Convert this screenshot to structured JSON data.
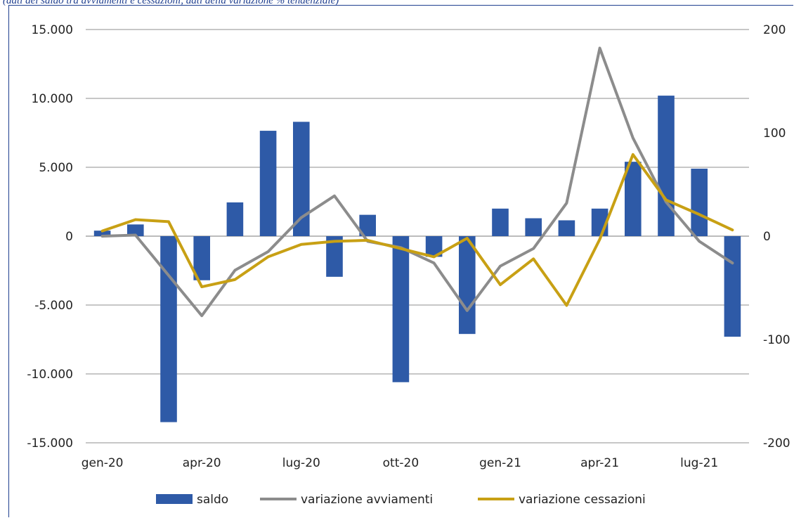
{
  "subtitle": "(dati del saldo tra avviamenti e cessazioni, dati della variazione % tendenziale)",
  "chart_data": {
    "type": "bar+line",
    "categories": [
      "gen-20",
      "feb-20",
      "mar-20",
      "apr-20",
      "mag-20",
      "giu-20",
      "lug-20",
      "ago-20",
      "set-20",
      "ott-20",
      "nov-20",
      "dic-20",
      "gen-21",
      "feb-21",
      "mar-21",
      "apr-21",
      "mag-21",
      "giu-21",
      "lug-21",
      "ago-21"
    ],
    "x_tick_labels": [
      "gen-20",
      "apr-20",
      "lug-20",
      "ott-20",
      "gen-21",
      "apr-21",
      "lug-21"
    ],
    "y_left": {
      "ticks": [
        "15.000",
        "10.000",
        "5.000",
        "0",
        "-5.000",
        "-10.000",
        "-15.000"
      ],
      "range": [
        -15000,
        15000
      ]
    },
    "y_right": {
      "ticks": [
        "200",
        "100",
        "0",
        "-100",
        "-200"
      ],
      "range": [
        -200,
        200
      ]
    },
    "grid": true,
    "legend": "bottom",
    "series": [
      {
        "name": "saldo",
        "type": "bar",
        "axis": "left",
        "color": "#2e5aa7",
        "values": [
          400,
          850,
          -13500,
          -3200,
          2450,
          7650,
          8300,
          -2950,
          1550,
          -10600,
          -1500,
          -7100,
          2000,
          1300,
          1150,
          2000,
          5400,
          10200,
          4900,
          -7300
        ]
      },
      {
        "name": "variazione avviamenti",
        "type": "line",
        "axis": "right",
        "color": "#8c8c8c",
        "values": [
          0,
          1,
          -38,
          -77,
          -33,
          -15,
          18,
          39,
          -5,
          -11,
          -26,
          -72,
          -29,
          -12,
          32,
          182,
          95,
          33,
          -5,
          -26
        ]
      },
      {
        "name": "variazione cessazioni",
        "type": "line",
        "axis": "right",
        "color": "#c8a014",
        "values": [
          5,
          16,
          14,
          -49,
          -42,
          -20,
          -8,
          -5,
          -4,
          -12,
          -20,
          -2,
          -47,
          -22,
          -67,
          -3,
          79,
          35,
          21,
          6
        ]
      }
    ]
  }
}
